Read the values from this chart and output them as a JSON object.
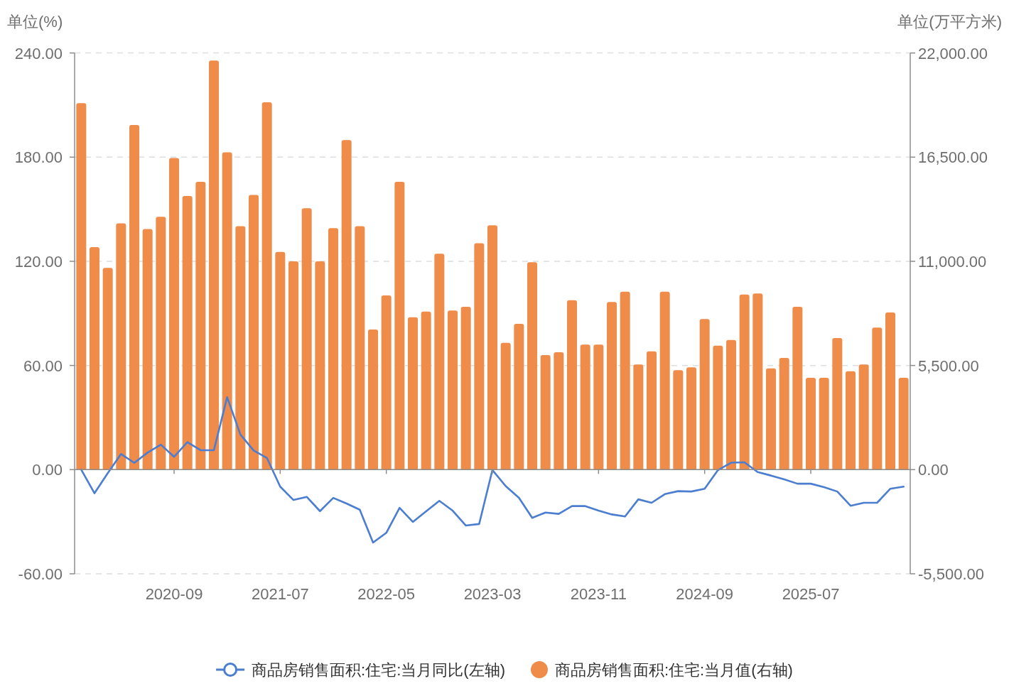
{
  "chart_data": {
    "type": "bar",
    "categories": [
      null,
      null,
      null,
      null,
      null,
      null,
      null,
      "2020-09",
      null,
      null,
      null,
      null,
      null,
      null,
      null,
      "2021-07",
      null,
      null,
      null,
      null,
      null,
      null,
      null,
      "2022-05",
      null,
      null,
      null,
      null,
      null,
      null,
      null,
      "2023-03",
      null,
      null,
      null,
      null,
      null,
      null,
      null,
      "2023-11",
      null,
      null,
      null,
      null,
      null,
      null,
      null,
      "2024-09",
      null,
      null,
      null,
      null,
      null,
      null,
      null,
      "2025-07",
      null,
      null,
      null,
      null,
      null,
      null,
      null
    ],
    "ylabel": "单位(%)",
    "y2label": "单位(万平方米)",
    "ylim": [
      -60,
      240
    ],
    "yticks": [
      {
        "value": -60,
        "label": "-60.00"
      },
      {
        "value": 0,
        "label": "0.00"
      },
      {
        "value": 60,
        "label": "60.00"
      },
      {
        "value": 120,
        "label": "120.00"
      },
      {
        "value": 180,
        "label": "180.00"
      },
      {
        "value": 240,
        "label": "240.00"
      }
    ],
    "y2lim": [
      -5500,
      22000
    ],
    "y2ticks": [
      {
        "value": -5500,
        "label": "-5,500.00"
      },
      {
        "value": 0,
        "label": "0.00"
      },
      {
        "value": 5500,
        "label": "5,500.00"
      },
      {
        "value": 11000,
        "label": "11,000.00"
      },
      {
        "value": 16500,
        "label": "16,500.00"
      },
      {
        "value": 22000,
        "label": "22,000.00"
      }
    ],
    "grid": "y",
    "legend": "bottom",
    "series": [
      {
        "name": "商品房销售面积:住宅:当月同比(左轴)",
        "type": "line",
        "color": "#4b7dd0",
        "values": [
          0,
          -13.6,
          -2,
          9,
          3.9,
          9.8,
          14.4,
          7.4,
          15.8,
          11.2,
          11.2,
          41.7,
          20.2,
          11,
          6.7,
          -9.8,
          -17.5,
          -15.7,
          -23.9,
          -16.3,
          -19.5,
          -23.1,
          -42,
          -36.4,
          -22,
          -30.1,
          -24,
          -18,
          -23.6,
          -32.2,
          -31.3,
          -0.2,
          -9.5,
          -16.2,
          -27.8,
          -24.7,
          -25.5,
          -21,
          -21,
          -23.6,
          -25.8,
          -27,
          -17.1,
          -19.1,
          -14.1,
          -12.4,
          -12.6,
          -11,
          -0.3,
          4,
          4.2,
          -1.4,
          -3.4,
          -5.6,
          -8.1,
          -8.1,
          -10.1,
          -12.6,
          -20.8,
          -19.1,
          -19.1,
          -11,
          -9.8
        ]
      },
      {
        "name": "商品房销售面积:住宅:当月值(右轴)",
        "axis": "y2",
        "color": "#f08c4a",
        "values": [
          19350,
          11750,
          10650,
          13000,
          18200,
          12700,
          13350,
          16450,
          14450,
          15200,
          21600,
          16750,
          12850,
          14500,
          19400,
          11500,
          11000,
          13800,
          11000,
          12750,
          17400,
          12850,
          7400,
          9200,
          15200,
          8050,
          8350,
          11400,
          8400,
          8600,
          11950,
          12900,
          6700,
          7700,
          10950,
          6050,
          6200,
          8950,
          6600,
          6600,
          8850,
          9400,
          5550,
          6250,
          9400,
          5250,
          5400,
          7950,
          6550,
          6850,
          9250,
          9300,
          5350,
          5900,
          8600,
          4850,
          4850,
          6950,
          5200,
          5550,
          7500,
          8300,
          4850
        ]
      }
    ]
  }
}
